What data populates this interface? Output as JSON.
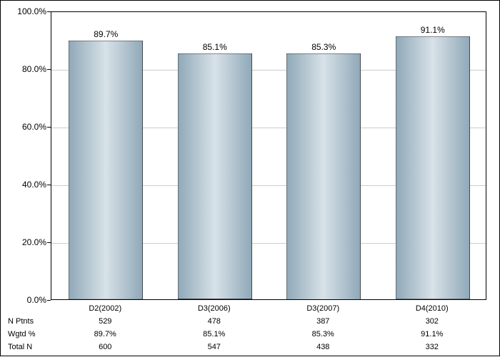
{
  "chart": {
    "type": "bar",
    "background_color": "#ffffff",
    "border_color": "#000000",
    "grid_color": "#cccccc",
    "y_axis": {
      "min": 0,
      "max": 100,
      "tick_step": 20,
      "format": "percent_1dp",
      "ticks": [
        {
          "value": 0,
          "label": "0.0%"
        },
        {
          "value": 20,
          "label": "20.0%"
        },
        {
          "value": 40,
          "label": "40.0%"
        },
        {
          "value": 60,
          "label": "60.0%"
        },
        {
          "value": 80,
          "label": "80.0%"
        },
        {
          "value": 100,
          "label": "100.0%"
        }
      ],
      "label_fontsize": 12
    },
    "bars": {
      "gradient_stops": [
        "#8fa8b8",
        "#d8e2e8",
        "#8fa8b8"
      ],
      "border_color": "#333333",
      "width_fraction": 0.68,
      "categories": [
        {
          "label": "D2(2002)",
          "value": 89.7,
          "value_label": "89.7%"
        },
        {
          "label": "D3(2006)",
          "value": 85.1,
          "value_label": "85.1%"
        },
        {
          "label": "D3(2007)",
          "value": 85.3,
          "value_label": "85.3%"
        },
        {
          "label": "D4(2010)",
          "value": 91.1,
          "value_label": "91.1%"
        }
      ],
      "label_fontsize": 12
    },
    "table": {
      "label_fontsize": 11,
      "rows": [
        {
          "label": "",
          "cells": [
            "D2(2002)",
            "D3(2006)",
            "D3(2007)",
            "D4(2010)"
          ]
        },
        {
          "label": "N Ptnts",
          "cells": [
            "529",
            "478",
            "387",
            "302"
          ]
        },
        {
          "label": "Wgtd %",
          "cells": [
            "89.7%",
            "85.1%",
            "85.3%",
            "91.1%"
          ]
        },
        {
          "label": "Total N",
          "cells": [
            "600",
            "547",
            "438",
            "332"
          ]
        }
      ]
    }
  }
}
